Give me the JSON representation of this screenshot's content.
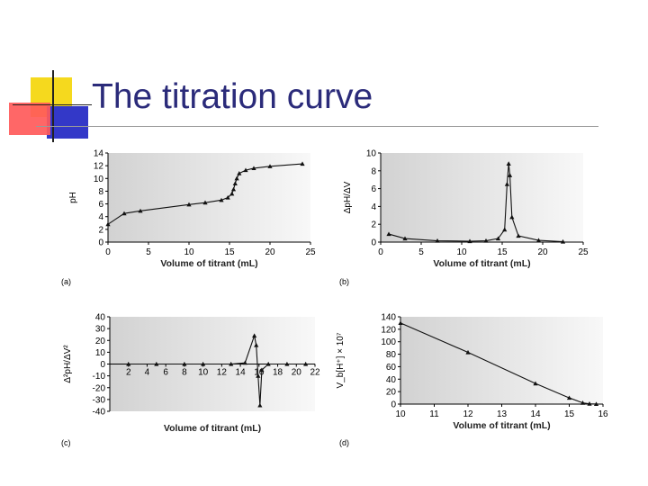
{
  "slide": {
    "title": "The titration curve",
    "colors": {
      "title": "#2b2b7a",
      "deco_yellow": "#f5d91e",
      "deco_red": "#ff5a5a",
      "deco_blue": "#3338c8"
    }
  },
  "chart_data": [
    {
      "id": "a",
      "type": "line",
      "panel_label": "(a)",
      "xlabel": "Volume of titrant (mL)",
      "ylabel": "pH",
      "xlim": [
        0,
        25
      ],
      "ylim": [
        0,
        14
      ],
      "xticks": [
        0,
        5,
        10,
        15,
        20,
        25
      ],
      "yticks": [
        0,
        2,
        4,
        6,
        8,
        10,
        12,
        14
      ],
      "x": [
        0,
        2,
        4,
        10,
        12,
        14,
        14.8,
        15.3,
        15.5,
        15.7,
        15.9,
        16.2,
        17,
        18,
        20,
        24
      ],
      "y": [
        2.8,
        4.5,
        4.9,
        5.9,
        6.2,
        6.6,
        7.0,
        7.6,
        8.3,
        9.2,
        10.0,
        10.8,
        11.3,
        11.6,
        11.9,
        12.3
      ]
    },
    {
      "id": "b",
      "type": "line",
      "panel_label": "(b)",
      "xlabel": "Volume of titrant (mL)",
      "ylabel": "ΔpH/ΔV",
      "xlim": [
        0,
        25
      ],
      "ylim": [
        0,
        10
      ],
      "xticks": [
        0,
        5,
        10,
        15,
        20,
        25
      ],
      "yticks": [
        0,
        2,
        4,
        6,
        8,
        10
      ],
      "x": [
        1,
        3,
        7,
        11,
        13,
        14.5,
        15.3,
        15.6,
        15.8,
        15.95,
        16.2,
        17,
        19.5,
        22.5
      ],
      "y": [
        0.9,
        0.4,
        0.15,
        0.1,
        0.15,
        0.4,
        1.4,
        6.5,
        8.8,
        7.5,
        2.8,
        0.7,
        0.2,
        0.05
      ]
    },
    {
      "id": "c",
      "type": "line",
      "panel_label": "(c)",
      "xlabel": "Volume of titrant (mL)",
      "ylabel": "Δ²pH/ΔV²",
      "xlim": [
        0,
        22
      ],
      "ylim": [
        -40,
        40
      ],
      "xticks": [
        2,
        4,
        6,
        8,
        10,
        12,
        14,
        16,
        18,
        20,
        22
      ],
      "yticks": [
        -40,
        -30,
        -20,
        -10,
        0,
        10,
        20,
        30,
        40
      ],
      "x": [
        2,
        5,
        8,
        10,
        13,
        14.5,
        15.5,
        15.7,
        15.9,
        16.1,
        16.3,
        17,
        19,
        21
      ],
      "y": [
        0,
        0,
        0,
        0,
        0,
        1,
        24,
        16,
        -10,
        -35,
        -5,
        0,
        0,
        0
      ]
    },
    {
      "id": "d",
      "type": "line",
      "panel_label": "(d)",
      "xlabel": "Volume of titrant (mL)",
      "ylabel": "V_b[H⁺] × 10⁷",
      "xlim": [
        10,
        16
      ],
      "ylim": [
        0,
        140
      ],
      "xticks": [
        10,
        11,
        12,
        13,
        14,
        15,
        16
      ],
      "yticks": [
        0,
        20,
        40,
        60,
        80,
        100,
        120,
        140
      ],
      "x": [
        10,
        12,
        14,
        15,
        15.4,
        15.6,
        15.8
      ],
      "y": [
        130,
        83,
        33,
        10,
        2,
        0.5,
        0.1
      ]
    }
  ]
}
